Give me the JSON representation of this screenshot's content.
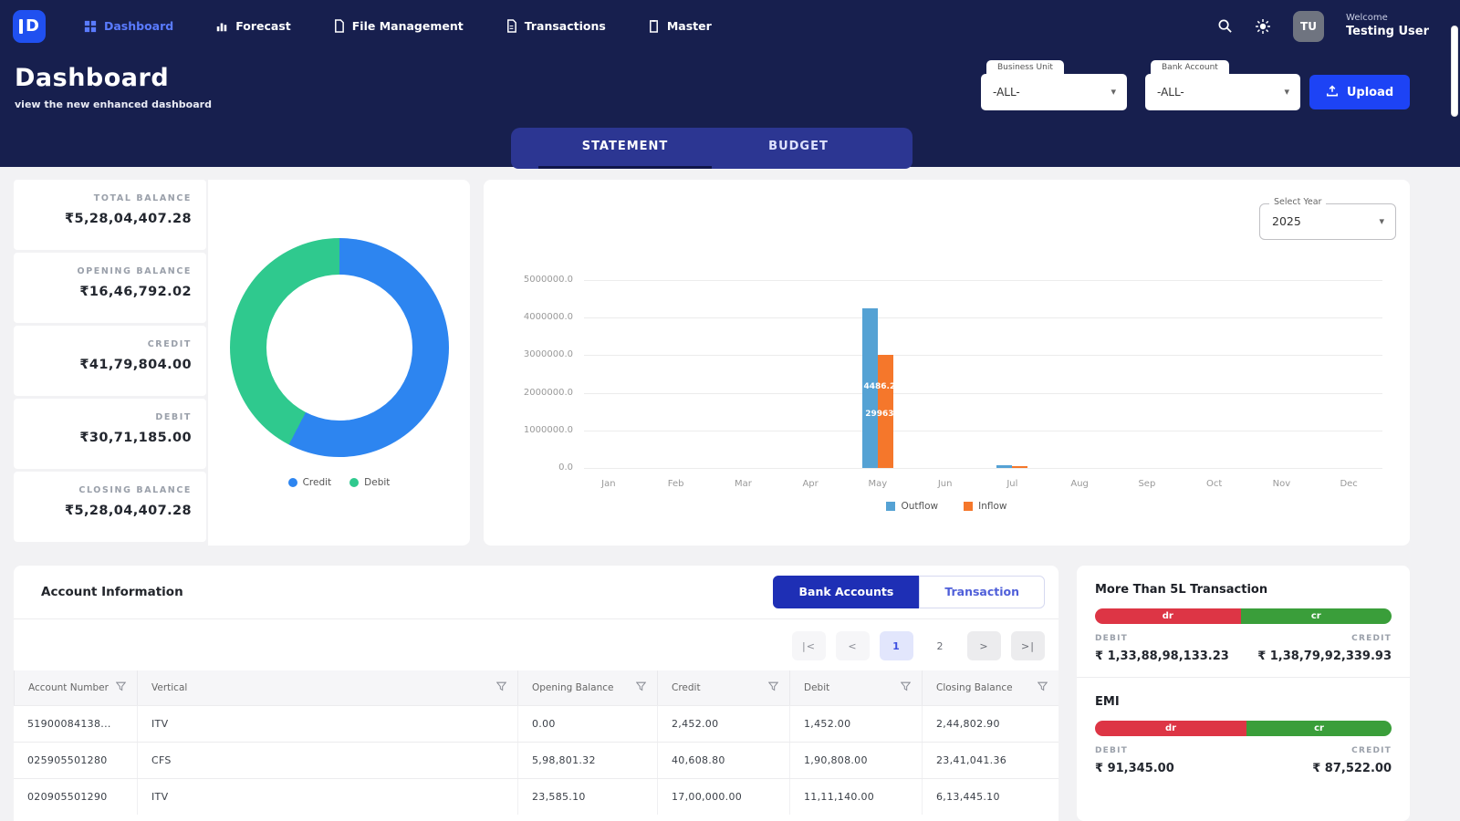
{
  "topbar": {
    "nav": [
      {
        "label": "Dashboard",
        "active": true
      },
      {
        "label": "Forecast",
        "active": false
      },
      {
        "label": "File Management",
        "active": false
      },
      {
        "label": "Transactions",
        "active": false
      },
      {
        "label": "Master",
        "active": false
      }
    ],
    "avatar": "TU",
    "welcome": "Welcome",
    "user": "Testing User"
  },
  "header": {
    "title": "Dashboard",
    "subtitle": "view the new enhanced dashboard",
    "filters": [
      {
        "label": "Business Unit",
        "value": "-ALL-"
      },
      {
        "label": "Bank Account",
        "value": "-ALL-"
      }
    ],
    "upload_label": "Upload"
  },
  "tabs": {
    "statement": "STATEMENT",
    "budget": "BUDGET"
  },
  "stats": [
    {
      "label": "TOTAL BALANCE",
      "value": "₹5,28,04,407.28"
    },
    {
      "label": "OPENING BALANCE",
      "value": "₹16,46,792.02"
    },
    {
      "label": "CREDIT",
      "value": "₹41,79,804.00"
    },
    {
      "label": "DEBIT",
      "value": "₹30,71,185.00"
    },
    {
      "label": "CLOSING BALANCE",
      "value": "₹5,28,04,407.28"
    }
  ],
  "chart_card": {
    "select_year_label": "Select Year",
    "select_year_value": "2025"
  },
  "chart_data": [
    {
      "type": "pie",
      "labels": [
        "Credit",
        "Debit"
      ],
      "values": [
        4179804,
        3071185
      ],
      "colors": [
        "#2d85f0",
        "#2fc98e"
      ],
      "legend_position": "bottom"
    },
    {
      "type": "bar",
      "categories": [
        "Jan",
        "Feb",
        "Mar",
        "Apr",
        "May",
        "Jun",
        "Jul",
        "Aug",
        "Sep",
        "Oct",
        "Nov",
        "Dec"
      ],
      "series": [
        {
          "name": "Outflow",
          "color": "#55a2d4",
          "values": [
            0,
            0,
            0,
            0,
            4250000,
            0,
            80000,
            0,
            0,
            0,
            0,
            0
          ]
        },
        {
          "name": "Inflow",
          "color": "#f5772b",
          "values": [
            0,
            0,
            0,
            0,
            3000000,
            0,
            30000,
            0,
            0,
            0,
            0,
            0
          ]
        }
      ],
      "ylim": [
        0,
        5000000
      ],
      "yticks": [
        "5000000.0",
        "4000000.0",
        "3000000.0",
        "2000000.0",
        "1000000.0",
        "0.0"
      ],
      "bar_value_labels": [
        "4486.2",
        "29963"
      ],
      "legend_position": "bottom",
      "grid": true
    }
  ],
  "account_card": {
    "title": "Account Information",
    "buttons": {
      "bank_accounts": "Bank Accounts",
      "transaction": "Transaction"
    },
    "pagination": [
      {
        "label": "|<",
        "variant": "light"
      },
      {
        "label": "<",
        "variant": "light"
      },
      {
        "label": "1",
        "variant": "active"
      },
      {
        "label": "2",
        "variant": "plain"
      },
      {
        "label": ">",
        "variant": "gray"
      },
      {
        "label": ">|",
        "variant": "gray"
      }
    ],
    "columns": [
      {
        "label": "Account Number"
      },
      {
        "label": "Vertical"
      },
      {
        "label": "Opening Balance"
      },
      {
        "label": "Credit"
      },
      {
        "label": "Debit"
      },
      {
        "label": "Closing Balance"
      }
    ],
    "rows": [
      [
        "51900084138...",
        "ITV",
        "0.00",
        "2,452.00",
        "1,452.00",
        "2,44,802.90"
      ],
      [
        "025905501280",
        "CFS",
        "5,98,801.32",
        "40,608.80",
        "1,90,808.00",
        "23,41,041.36"
      ],
      [
        "020905501290",
        "ITV",
        "23,585.10",
        "17,00,000.00",
        "11,11,140.00",
        "6,13,445.10"
      ]
    ]
  },
  "summary_card": {
    "sections": [
      {
        "title": "More Than 5L Transaction",
        "dr_label": "dr",
        "cr_label": "cr",
        "dr_width": "49.1%",
        "debit_label": "DEBIT",
        "credit_label": "CREDIT",
        "debit_value": "₹ 1,33,88,98,133.23",
        "credit_value": "₹ 1,38,79,92,339.93"
      },
      {
        "title": "EMI",
        "dr_label": "dr",
        "cr_label": "cr",
        "dr_width": "51.1%",
        "debit_label": "DEBIT",
        "credit_label": "CREDIT",
        "debit_value": "₹ 91,345.00",
        "credit_value": "₹ 87,522.00"
      }
    ]
  }
}
